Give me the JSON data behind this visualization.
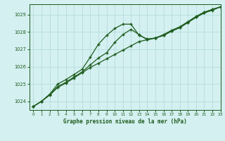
{
  "line1": {
    "x": [
      0,
      1,
      2,
      3,
      4,
      5,
      6,
      7,
      8,
      9,
      10,
      11,
      12,
      13,
      14,
      15,
      16,
      17,
      18,
      19,
      20,
      21,
      22,
      23
    ],
    "y": [
      1023.7,
      1024.0,
      1024.4,
      1024.85,
      1025.1,
      1025.4,
      1025.7,
      1026.1,
      1026.5,
      1026.8,
      1027.4,
      1027.85,
      1028.15,
      1027.85,
      1027.55,
      1027.65,
      1027.8,
      1028.05,
      1028.25,
      1028.55,
      1028.85,
      1029.1,
      1029.25,
      1029.45
    ]
  },
  "line2": {
    "x": [
      0,
      1,
      2,
      3,
      4,
      5,
      6,
      7,
      8,
      9,
      10,
      11,
      12,
      13,
      14,
      15,
      16,
      17,
      18,
      19,
      20,
      21,
      22,
      23
    ],
    "y": [
      1023.7,
      1024.0,
      1024.4,
      1025.0,
      1025.25,
      1025.55,
      1025.85,
      1026.55,
      1027.3,
      1027.8,
      1028.2,
      1028.45,
      1028.45,
      1027.8,
      1027.6,
      1027.65,
      1027.85,
      1028.1,
      1028.3,
      1028.6,
      1028.9,
      1029.15,
      1029.3,
      1029.45
    ]
  },
  "line3": {
    "x": [
      0,
      1,
      2,
      3,
      4,
      5,
      6,
      7,
      8,
      9,
      10,
      11,
      12,
      13,
      14,
      15,
      16,
      17,
      18,
      19,
      20,
      21,
      22,
      23
    ],
    "y": [
      1023.7,
      1024.0,
      1024.35,
      1024.8,
      1025.05,
      1025.35,
      1025.65,
      1025.95,
      1026.2,
      1026.45,
      1026.7,
      1026.95,
      1027.2,
      1027.45,
      1027.55,
      1027.65,
      1027.8,
      1028.05,
      1028.25,
      1028.55,
      1028.85,
      1029.1,
      1029.3,
      1029.45
    ]
  },
  "line_color": "#1e5c1e",
  "bg_color": "#d4f0f0",
  "grid_color": "#b0d8d8",
  "xlabel": "Graphe pression niveau de la mer (hPa)",
  "ylim": [
    1023.5,
    1029.6
  ],
  "xlim": [
    -0.5,
    23
  ],
  "yticks": [
    1024,
    1025,
    1026,
    1027,
    1028,
    1029
  ],
  "xticks": [
    0,
    1,
    2,
    3,
    4,
    5,
    6,
    7,
    8,
    9,
    10,
    11,
    12,
    13,
    14,
    15,
    16,
    17,
    18,
    19,
    20,
    21,
    22,
    23
  ]
}
